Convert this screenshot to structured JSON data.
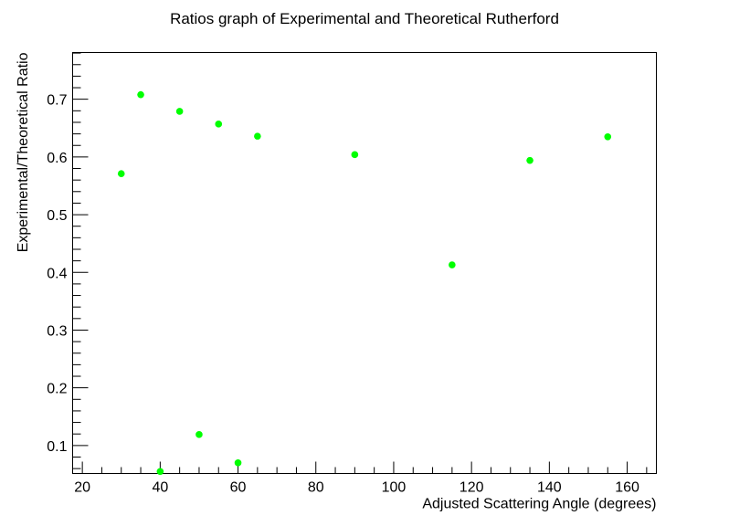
{
  "chart_data": {
    "type": "scatter",
    "title": "Ratios graph of Experimental and Theoretical Rutherford",
    "xlabel": "Adjusted Scattering Angle (degrees)",
    "ylabel": "Experimental/Theoretical Ratio",
    "xlim": [
      17.5,
      167.5
    ],
    "ylim": [
      0.0515,
      0.781
    ],
    "x_ticks": [
      20,
      40,
      60,
      80,
      100,
      120,
      140,
      160
    ],
    "y_ticks": [
      0.1,
      0.2,
      0.3,
      0.4,
      0.5,
      0.6,
      0.7
    ],
    "grid": false,
    "legend": "none",
    "marker_color": "#00ff00",
    "series": [
      {
        "x": [
          30,
          35,
          40,
          45,
          50,
          55,
          60,
          65,
          90,
          115,
          135,
          155
        ],
        "y": [
          0.571,
          0.708,
          0.055,
          0.679,
          0.119,
          0.657,
          0.07,
          0.636,
          0.604,
          0.413,
          0.594,
          0.635
        ],
        "yerr": [
          0.006,
          0.006,
          0.002,
          0.004,
          0.002,
          0.004,
          0.002,
          0.004,
          0.003,
          0.003,
          0.004,
          0.005
        ]
      }
    ]
  }
}
